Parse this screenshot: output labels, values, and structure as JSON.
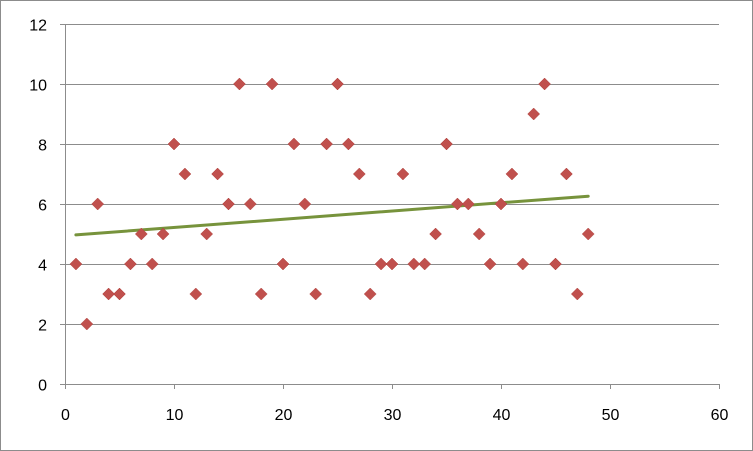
{
  "chart_data": {
    "type": "scatter",
    "title": "",
    "xlabel": "",
    "ylabel": "",
    "xlim": [
      0,
      60
    ],
    "ylim": [
      0,
      12
    ],
    "x_ticks": [
      0,
      10,
      20,
      30,
      40,
      50,
      60
    ],
    "y_ticks": [
      0,
      2,
      4,
      6,
      8,
      10,
      12
    ],
    "grid": "horizontal",
    "legend": "none",
    "series": [
      {
        "marker": "diamond",
        "color": "#c0504d",
        "x": [
          1,
          2,
          3,
          4,
          5,
          6,
          7,
          8,
          9,
          10,
          11,
          12,
          13,
          14,
          15,
          16,
          17,
          18,
          19,
          20,
          21,
          22,
          23,
          24,
          25,
          26,
          27,
          28,
          29,
          30,
          31,
          32,
          33,
          34,
          35,
          36,
          37,
          38,
          39,
          40,
          41,
          42,
          43,
          44,
          45,
          46,
          47,
          48
        ],
        "y": [
          4,
          2,
          6,
          3,
          3,
          4,
          5,
          4,
          5,
          8,
          7,
          3,
          5,
          7,
          6,
          10,
          6,
          3,
          10,
          4,
          8,
          6,
          3,
          8,
          10,
          8,
          7,
          3,
          4,
          4,
          7,
          4,
          4,
          5,
          8,
          6,
          6,
          5,
          4,
          6,
          7,
          4,
          9,
          10,
          4,
          7,
          3,
          5
        ]
      }
    ],
    "trendline": {
      "type": "linear",
      "color": "#77933c",
      "x": [
        1,
        48
      ],
      "y": [
        4.97,
        6.26
      ]
    }
  }
}
